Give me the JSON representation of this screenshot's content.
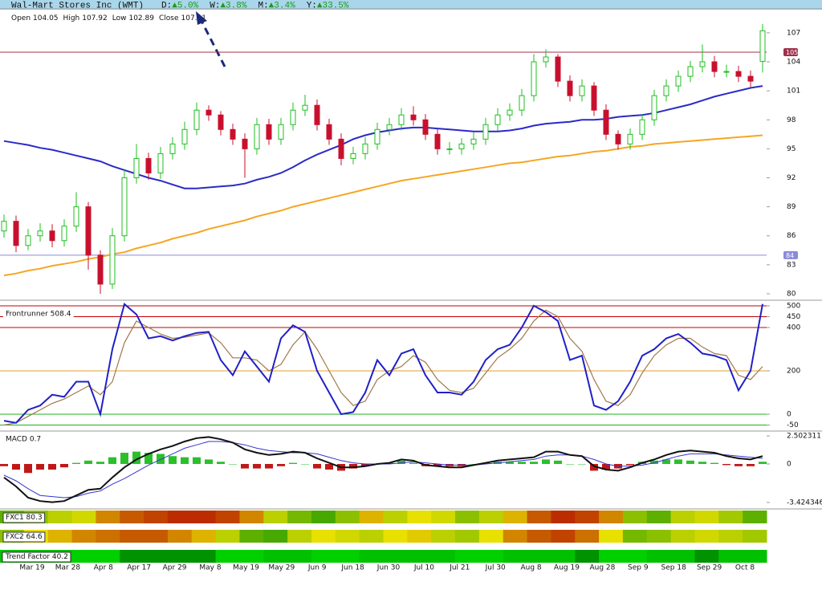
{
  "header": {
    "title": "Wal-Mart Stores Inc (WMT)",
    "changes": [
      {
        "label": "D:",
        "value": "▲5.0%"
      },
      {
        "label": "W:",
        "value": "▲3.8%"
      },
      {
        "label": "M:",
        "value": "▲3.4%"
      },
      {
        "label": "Y:",
        "value": "▲33.5%"
      }
    ],
    "ohlc_labels": [
      "Open",
      "High",
      "Low",
      "Close"
    ]
  },
  "x_labels": [
    "Mar 19",
    "Mar 28",
    "Apr 8",
    "Apr 17",
    "Apr 29",
    "May 8",
    "May 19",
    "May 29",
    "Jun 9",
    "Jun 18",
    "Jun 30",
    "Jul 10",
    "Jul 21",
    "Jul 30",
    "Aug 8",
    "Aug 19",
    "Aug 28",
    "Sep 9",
    "Sep 18",
    "Sep 29",
    "Oct 8"
  ],
  "chart_data": [
    {
      "type": "candlestick",
      "ylim": [
        79.5,
        109.4
      ],
      "yticks": [
        107,
        104,
        101,
        98,
        95,
        92,
        89,
        86,
        83,
        80
      ],
      "up_color": "#1fbf1f",
      "down_color": "#c8102e",
      "open": [
        86.5,
        87.5,
        85,
        86,
        86.5,
        85.5,
        87,
        89,
        84,
        81,
        86,
        92,
        94,
        92.5,
        94.5,
        95.5,
        97,
        99,
        98.5,
        97,
        96,
        95,
        97.5,
        96,
        97.5,
        99,
        99.5,
        97.5,
        96,
        94,
        94.5,
        95.5,
        97,
        97.5,
        98.5,
        98,
        96.5,
        95,
        95,
        95.5,
        96,
        97.5,
        98.5,
        99,
        100.5,
        104,
        104.5,
        102,
        100.5,
        101.5,
        99,
        96.5,
        95.5,
        96.5,
        98,
        100.5,
        101.5,
        102.5,
        103.5,
        104,
        103,
        103,
        102.5,
        104.05
      ],
      "high": [
        88.2,
        88.1,
        86.7,
        87.3,
        87.2,
        87.7,
        90.5,
        89.5,
        84.5,
        86.8,
        92.8,
        95.5,
        94.6,
        95.2,
        96.2,
        97.8,
        99.8,
        99.5,
        98.9,
        97.6,
        96.6,
        98.2,
        98.1,
        98.2,
        99.8,
        100.6,
        100.1,
        98.1,
        96.6,
        95.2,
        96.2,
        97.7,
        98.2,
        99.2,
        99.4,
        98.6,
        97.1,
        95.7,
        96.1,
        96.7,
        98.2,
        99.2,
        99.7,
        101.2,
        104.8,
        105.3,
        104.8,
        102.6,
        102.2,
        101.9,
        99.6,
        96.9,
        97.1,
        98.6,
        101.1,
        102.2,
        103.1,
        104.1,
        105.8,
        104.6,
        103.7,
        103.6,
        103.1,
        107.92
      ],
      "low": [
        85.8,
        84.3,
        84.5,
        85.4,
        84.8,
        84.9,
        86.4,
        82.5,
        80,
        80.5,
        85.4,
        91.4,
        91.8,
        91.9,
        93.9,
        94.9,
        96.4,
        97.9,
        96.4,
        95.4,
        92,
        94.4,
        95.4,
        95.4,
        96.9,
        98.4,
        96.9,
        95.4,
        93.3,
        93.4,
        93.9,
        94.9,
        96.4,
        96.9,
        97.4,
        95.9,
        94.4,
        94.4,
        94.4,
        94.9,
        95.4,
        96.9,
        97.9,
        98.4,
        99.9,
        103.4,
        101.4,
        99.9,
        99.9,
        98.4,
        95.9,
        94.9,
        94.9,
        95.9,
        97.4,
        99.9,
        100.9,
        101.9,
        102.9,
        102.4,
        102.4,
        101.9,
        101.4,
        102.89
      ],
      "close": [
        87.5,
        85,
        86,
        86.5,
        85.5,
        87,
        89,
        84,
        81,
        86,
        92,
        94,
        92.5,
        94.5,
        95.5,
        97,
        99,
        98.5,
        97,
        96,
        95,
        97.5,
        96,
        97.5,
        99,
        99.5,
        97.5,
        96,
        94,
        94.5,
        95.5,
        97,
        97.5,
        98.5,
        98,
        96.5,
        95,
        95,
        95.5,
        96,
        97.5,
        98.5,
        99,
        100.5,
        104,
        104.5,
        102,
        100.5,
        101.5,
        99,
        96.5,
        95.5,
        96.5,
        98,
        100.5,
        101.5,
        102.5,
        103.5,
        104,
        103,
        103,
        102.5,
        102,
        107.21
      ],
      "series": [
        {
          "color": "#2a2ac8",
          "values": [
            95.8,
            95.6,
            95.4,
            95.1,
            94.9,
            94.6,
            94.3,
            94.0,
            93.7,
            93.2,
            92.8,
            92.4,
            92.0,
            91.7,
            91.3,
            90.9,
            90.9,
            91.0,
            91.1,
            91.2,
            91.4,
            91.8,
            92.1,
            92.5,
            93.1,
            93.8,
            94.4,
            94.9,
            95.4,
            96.0,
            96.4,
            96.7,
            96.9,
            97.1,
            97.2,
            97.2,
            97.1,
            97.0,
            96.9,
            96.8,
            96.8,
            96.8,
            96.9,
            97.1,
            97.4,
            97.6,
            97.7,
            97.8,
            98.0,
            98.0,
            98.1,
            98.3,
            98.4,
            98.5,
            98.7,
            99.0,
            99.3,
            99.6,
            100.0,
            100.4,
            100.7,
            101.0,
            101.3,
            101.5
          ]
        },
        {
          "color": "#f5a623",
          "values": [
            81.9,
            82.1,
            82.4,
            82.6,
            82.9,
            83.1,
            83.3,
            83.6,
            83.8,
            84.1,
            84.3,
            84.7,
            85.0,
            85.3,
            85.7,
            86.0,
            86.3,
            86.7,
            87.0,
            87.3,
            87.6,
            88.0,
            88.3,
            88.6,
            89.0,
            89.3,
            89.6,
            89.9,
            90.2,
            90.5,
            90.8,
            91.1,
            91.4,
            91.7,
            91.9,
            92.1,
            92.3,
            92.5,
            92.7,
            92.9,
            93.1,
            93.3,
            93.5,
            93.6,
            93.8,
            94.0,
            94.2,
            94.3,
            94.5,
            94.7,
            94.8,
            95.0,
            95.2,
            95.3,
            95.5,
            95.6,
            95.7,
            95.8,
            95.9,
            96.0,
            96.1,
            96.2,
            96.3,
            96.4
          ]
        }
      ],
      "levels": [
        {
          "value": 105,
          "color": "#a0304a"
        },
        {
          "value": 84,
          "color": "#8a8ad8"
        }
      ]
    },
    {
      "type": "line",
      "label": "Frontrunner 508.4",
      "ylim": [
        -74,
        522
      ],
      "yticks": [
        500,
        450,
        400,
        200,
        0,
        -50
      ],
      "tick_colors": [
        "#c00000",
        "#c00000",
        "#c00000",
        "#e0a030",
        "#20b020",
        "#20b020"
      ],
      "series": [
        {
          "color": "#2020c8",
          "values": [
            -30,
            -40,
            20,
            40,
            90,
            80,
            150,
            150,
            0,
            300,
            508,
            460,
            350,
            360,
            340,
            360,
            375,
            380,
            250,
            180,
            290,
            220,
            150,
            350,
            410,
            380,
            200,
            100,
            0,
            10,
            100,
            250,
            180,
            280,
            300,
            180,
            100,
            100,
            90,
            150,
            250,
            300,
            320,
            400,
            500,
            470,
            430,
            250,
            270,
            40,
            20,
            60,
            150,
            270,
            300,
            350,
            370,
            330,
            280,
            270,
            250,
            110,
            200,
            508.4
          ]
        },
        {
          "color": "#a07848",
          "values": [
            -50,
            -40,
            -10,
            20,
            50,
            70,
            100,
            130,
            90,
            150,
            330,
            430,
            400,
            370,
            350,
            355,
            365,
            375,
            330,
            260,
            260,
            250,
            200,
            230,
            320,
            380,
            300,
            200,
            100,
            40,
            60,
            160,
            200,
            220,
            270,
            240,
            160,
            110,
            100,
            120,
            190,
            260,
            300,
            350,
            430,
            480,
            450,
            350,
            290,
            160,
            60,
            40,
            90,
            190,
            270,
            320,
            350,
            350,
            310,
            280,
            270,
            180,
            160,
            220
          ]
        }
      ]
    },
    {
      "type": "macd",
      "label": "MACD 0.7",
      "ylim": [
        -3.86,
        2.86
      ],
      "yticks": [
        2.502311,
        0,
        -3.424346
      ],
      "histogram": {
        "up_color": "#2cbf2c",
        "down_color": "#c01818",
        "values": [
          -0.2,
          -0.5,
          -0.8,
          -0.5,
          -0.5,
          -0.3,
          0.1,
          0.3,
          0.2,
          0.6,
          1.0,
          1.1,
          1.0,
          0.9,
          0.7,
          0.6,
          0.6,
          0.4,
          0.2,
          0.0,
          -0.4,
          -0.4,
          -0.4,
          -0.2,
          0.1,
          0.0,
          -0.4,
          -0.5,
          -0.6,
          -0.4,
          -0.2,
          0.0,
          0.1,
          0.3,
          0.1,
          -0.2,
          -0.2,
          -0.2,
          -0.2,
          0.0,
          0.1,
          0.2,
          0.2,
          0.2,
          0.2,
          0.4,
          0.3,
          0.0,
          0.0,
          -0.6,
          -0.5,
          -0.4,
          -0.1,
          0.2,
          0.3,
          0.4,
          0.4,
          0.3,
          0.2,
          0.1,
          -0.1,
          -0.2,
          -0.2,
          0.2
        ]
      },
      "series": [
        {
          "color": "#111111",
          "values": [
            -1.2,
            -2.0,
            -3.0,
            -3.3,
            -3.4,
            -3.3,
            -2.8,
            -2.3,
            -2.2,
            -1.2,
            -0.3,
            0.4,
            0.9,
            1.3,
            1.6,
            2.0,
            2.3,
            2.4,
            2.2,
            1.9,
            1.3,
            1.0,
            0.8,
            0.9,
            1.1,
            1.0,
            0.5,
            0.1,
            -0.3,
            -0.3,
            -0.2,
            0.0,
            0.1,
            0.4,
            0.3,
            -0.1,
            -0.2,
            -0.3,
            -0.3,
            -0.1,
            0.1,
            0.3,
            0.4,
            0.5,
            0.6,
            1.1,
            1.1,
            0.8,
            0.7,
            -0.2,
            -0.5,
            -0.6,
            -0.3,
            0.1,
            0.4,
            0.8,
            1.1,
            1.2,
            1.1,
            1.0,
            0.7,
            0.5,
            0.4,
            0.7
          ]
        },
        {
          "color": "#3535d0",
          "values": [
            -1.0,
            -1.5,
            -2.2,
            -2.8,
            -2.9,
            -3.0,
            -2.9,
            -2.6,
            -2.4,
            -1.8,
            -1.3,
            -0.7,
            -0.1,
            0.4,
            0.9,
            1.4,
            1.7,
            2.0,
            2.0,
            1.9,
            1.7,
            1.4,
            1.2,
            1.1,
            1.0,
            1.0,
            0.9,
            0.6,
            0.3,
            0.1,
            0.0,
            0.0,
            0.0,
            0.1,
            0.2,
            0.1,
            0.0,
            -0.1,
            -0.1,
            -0.1,
            0.0,
            0.1,
            0.2,
            0.3,
            0.4,
            0.7,
            0.8,
            0.8,
            0.7,
            0.4,
            0.0,
            -0.2,
            -0.2,
            -0.1,
            0.1,
            0.4,
            0.7,
            0.9,
            0.9,
            0.9,
            0.8,
            0.7,
            0.6,
            0.5
          ]
        }
      ]
    },
    {
      "type": "heatstrip",
      "label": "FXC1 80.3",
      "scale": [
        "#b00000",
        "#e8e000",
        "#009000"
      ],
      "values": [
        80,
        70,
        60,
        55,
        30,
        20,
        15,
        10,
        10,
        15,
        30,
        60,
        75,
        85,
        70,
        40,
        60,
        50,
        55,
        70,
        60,
        40,
        20,
        10,
        15,
        30,
        70,
        80,
        60,
        55,
        65,
        80
      ]
    },
    {
      "type": "heatstrip",
      "label": "FXC2 64.6",
      "scale": [
        "#b00000",
        "#e8e000",
        "#009000"
      ],
      "values": [
        70,
        50,
        40,
        30,
        25,
        20,
        20,
        30,
        40,
        60,
        80,
        85,
        60,
        50,
        55,
        60,
        50,
        45,
        60,
        65,
        50,
        30,
        20,
        15,
        25,
        50,
        75,
        70,
        60,
        55,
        60,
        65
      ]
    },
    {
      "type": "heatstrip",
      "label": "Trend Factor 40.2",
      "scale": [
        "#00d800",
        "#008a00"
      ],
      "values": [
        30,
        30,
        30,
        10,
        10,
        90,
        90,
        90,
        90,
        10,
        10,
        30,
        30,
        10,
        10,
        30,
        30,
        30,
        30,
        10,
        10,
        30,
        30,
        30,
        90,
        10,
        10,
        30,
        30,
        90,
        30,
        30
      ]
    }
  ]
}
